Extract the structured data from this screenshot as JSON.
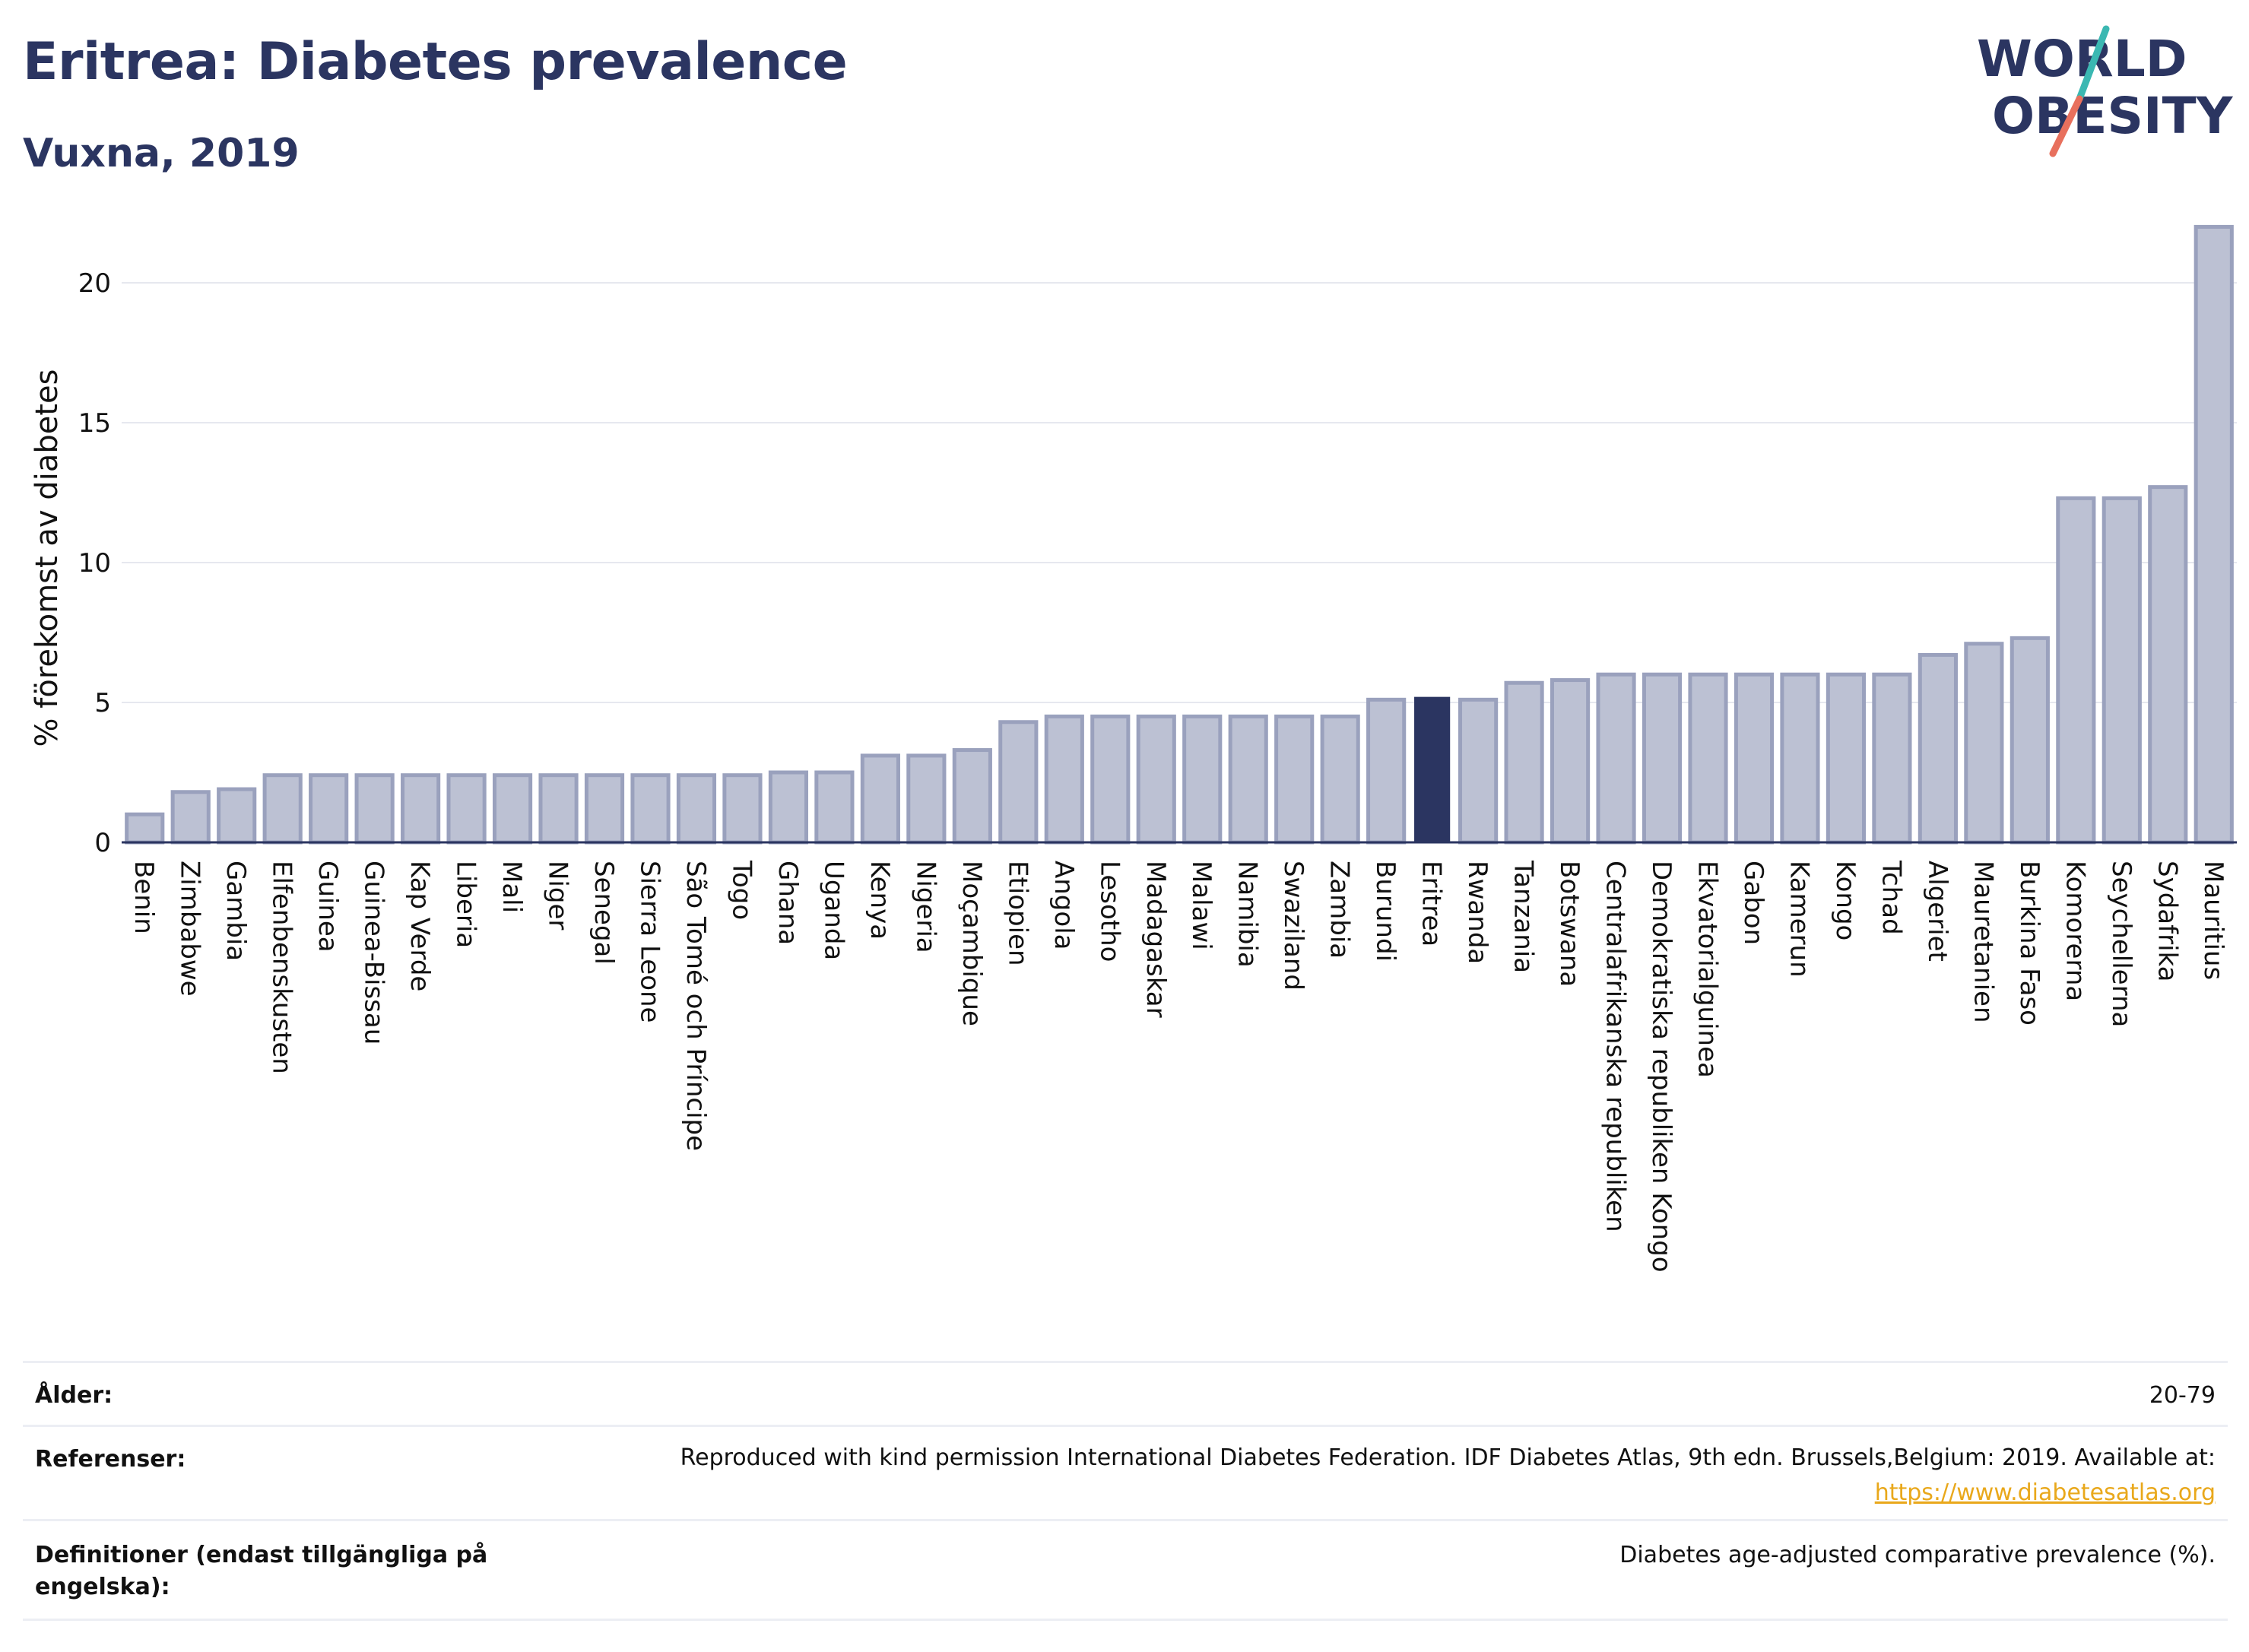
{
  "header": {
    "title": "Eritrea: Diabetes prevalence",
    "subtitle": "Vuxna, 2019"
  },
  "logo": {
    "line1": "WORLD",
    "line2": "OBESITY",
    "text_color": "#2b3561",
    "accent_colors": [
      "#3bb8b2",
      "#e8705d"
    ]
  },
  "colors": {
    "bar_fill": "#bcc1d3",
    "bar_stroke": "#9aa1bd",
    "highlight": "#2b3561",
    "grid": "#e6e8ef",
    "axis": "#2b3561"
  },
  "chart_data": {
    "type": "bar",
    "ylabel": "% förekomst av diabetes",
    "ylim": [
      0,
      22.5
    ],
    "yticks": [
      0,
      5,
      10,
      15,
      20
    ],
    "grid": true,
    "highlight": "Eritrea",
    "categories": [
      "Benin",
      "Zimbabwe",
      "Gambia",
      "Elfenbenskusten",
      "Guinea",
      "Guinea-Bissau",
      "Kap Verde",
      "Liberia",
      "Mali",
      "Niger",
      "Senegal",
      "Sierra Leone",
      "São Tomé och Príncipe",
      "Togo",
      "Ghana",
      "Uganda",
      "Kenya",
      "Nigeria",
      "Moçambique",
      "Etiopien",
      "Angola",
      "Lesotho",
      "Madagaskar",
      "Malawi",
      "Namibia",
      "Swaziland",
      "Zambia",
      "Burundi",
      "Eritrea",
      "Rwanda",
      "Tanzania",
      "Botswana",
      "Centralafrikanska republiken",
      "Demokratiska republiken Kongo",
      "Ekvatorialguinea",
      "Gabon",
      "Kamerun",
      "Kongo",
      "Tchad",
      "Algeriet",
      "Mauretanien",
      "Burkina Faso",
      "Komorerna",
      "Seychellerna",
      "Sydafrika",
      "Mauritius"
    ],
    "values": [
      1.0,
      1.8,
      1.9,
      2.4,
      2.4,
      2.4,
      2.4,
      2.4,
      2.4,
      2.4,
      2.4,
      2.4,
      2.4,
      2.4,
      2.5,
      2.5,
      3.1,
      3.1,
      3.3,
      4.3,
      4.5,
      4.5,
      4.5,
      4.5,
      4.5,
      4.5,
      4.5,
      5.1,
      5.2,
      5.1,
      5.7,
      5.8,
      6.0,
      6.0,
      6.0,
      6.0,
      6.0,
      6.0,
      6.0,
      6.7,
      7.1,
      7.3,
      12.3,
      12.3,
      12.7,
      22.0
    ]
  },
  "footer": {
    "age_label": "Ålder:",
    "age_value": "20-79",
    "refs_label": "Referenser:",
    "refs_value": "Reproduced with kind permission International Diabetes Federation. IDF Diabetes Atlas, 9th edn. Brussels,Belgium: 2019. Available at:",
    "refs_link": "https://www.diabetesatlas.org",
    "defs_label_line1": "Definitioner (endast tillgängliga på",
    "defs_label_line2": "engelska):",
    "defs_value": "Diabetes age-adjusted comparative prevalence (%)."
  }
}
